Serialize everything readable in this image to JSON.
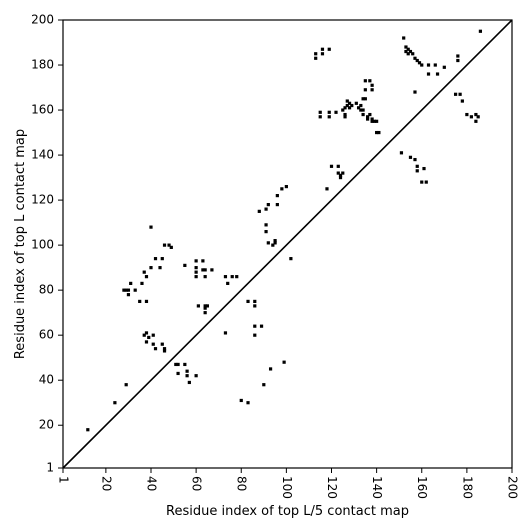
{
  "chart_data": {
    "type": "scatter",
    "xlabel": "Residue index of top L/5 contact map",
    "ylabel": "Residue index of top L contact map",
    "xlim": [
      1,
      200
    ],
    "ylim": [
      1,
      200
    ],
    "xticks": [
      1,
      20,
      40,
      60,
      80,
      100,
      120,
      140,
      160,
      180,
      200
    ],
    "yticks": [
      1,
      20,
      40,
      60,
      80,
      100,
      120,
      140,
      160,
      180,
      200
    ],
    "xtick_labels": [
      "1",
      "20",
      "40",
      "60",
      "80",
      "100",
      "120",
      "140",
      "160",
      "180",
      "200"
    ],
    "ytick_labels": [
      "1",
      "20",
      "40",
      "60",
      "80",
      "100",
      "120",
      "140",
      "160",
      "180",
      "200"
    ],
    "diagonal": true,
    "grid": false,
    "marker_color": "#000000",
    "series": [
      {
        "points": [
          [
            12,
            18
          ],
          [
            24,
            30
          ],
          [
            29,
            38
          ],
          [
            28,
            80
          ],
          [
            29,
            80
          ],
          [
            30,
            80
          ],
          [
            30,
            78
          ],
          [
            31,
            83
          ],
          [
            33,
            80
          ],
          [
            35,
            75
          ],
          [
            36,
            83
          ],
          [
            37,
            88
          ],
          [
            38,
            86
          ],
          [
            38,
            75
          ],
          [
            38,
            61
          ],
          [
            37,
            60
          ],
          [
            39,
            59
          ],
          [
            38,
            57
          ],
          [
            40,
            108
          ],
          [
            40,
            90
          ],
          [
            41,
            60
          ],
          [
            41,
            56
          ],
          [
            42,
            94
          ],
          [
            42,
            54
          ],
          [
            44,
            90
          ],
          [
            45,
            94
          ],
          [
            45,
            56
          ],
          [
            46,
            100
          ],
          [
            46,
            54
          ],
          [
            46,
            53
          ],
          [
            48,
            100
          ],
          [
            49,
            99
          ],
          [
            51,
            47
          ],
          [
            52,
            47
          ],
          [
            52,
            43
          ],
          [
            55,
            47
          ],
          [
            56,
            44
          ],
          [
            56,
            42
          ],
          [
            55,
            91
          ],
          [
            57,
            39
          ],
          [
            60,
            93
          ],
          [
            60,
            90
          ],
          [
            60,
            88
          ],
          [
            60,
            86
          ],
          [
            60,
            42
          ],
          [
            61,
            73
          ],
          [
            63,
            93
          ],
          [
            63,
            89
          ],
          [
            64,
            89
          ],
          [
            64,
            86
          ],
          [
            64,
            73
          ],
          [
            64,
            72
          ],
          [
            64,
            70
          ],
          [
            65,
            73
          ],
          [
            67,
            89
          ],
          [
            73,
            86
          ],
          [
            74,
            83
          ],
          [
            73,
            61
          ],
          [
            76,
            86
          ],
          [
            78,
            86
          ],
          [
            80,
            31
          ],
          [
            83,
            30
          ],
          [
            83,
            75
          ],
          [
            86,
            75
          ],
          [
            86,
            73
          ],
          [
            86,
            64
          ],
          [
            86,
            60
          ],
          [
            88,
            115
          ],
          [
            89,
            64
          ],
          [
            90,
            38
          ],
          [
            91,
            116
          ],
          [
            91,
            109
          ],
          [
            91,
            106
          ],
          [
            92,
            101
          ],
          [
            92,
            118
          ],
          [
            93,
            45
          ],
          [
            94,
            100
          ],
          [
            95,
            102
          ],
          [
            95,
            101
          ],
          [
            96,
            118
          ],
          [
            96,
            122
          ],
          [
            98,
            125
          ],
          [
            99,
            48
          ],
          [
            100,
            126
          ],
          [
            102,
            94
          ],
          [
            113,
            185
          ],
          [
            113,
            183
          ],
          [
            116,
            187
          ],
          [
            116,
            185
          ],
          [
            115,
            159
          ],
          [
            115,
            157
          ],
          [
            118,
            125
          ],
          [
            119,
            187
          ],
          [
            119,
            159
          ],
          [
            119,
            157
          ],
          [
            120,
            135
          ],
          [
            122,
            159
          ],
          [
            123,
            135
          ],
          [
            123,
            132
          ],
          [
            124,
            131
          ],
          [
            124,
            130
          ],
          [
            125,
            132
          ],
          [
            125,
            160
          ],
          [
            126,
            158
          ],
          [
            126,
            157
          ],
          [
            126,
            161
          ],
          [
            127,
            164
          ],
          [
            127,
            162
          ],
          [
            128,
            163
          ],
          [
            128,
            161
          ],
          [
            129,
            162
          ],
          [
            131,
            163
          ],
          [
            132,
            161
          ],
          [
            133,
            162
          ],
          [
            133,
            160
          ],
          [
            134,
            160
          ],
          [
            134,
            158
          ],
          [
            134,
            165
          ],
          [
            135,
            173
          ],
          [
            135,
            169
          ],
          [
            135,
            165
          ],
          [
            136,
            157
          ],
          [
            136,
            156
          ],
          [
            137,
            158
          ],
          [
            137,
            173
          ],
          [
            138,
            156
          ],
          [
            138,
            155
          ],
          [
            138,
            171
          ],
          [
            138,
            169
          ],
          [
            139,
            155
          ],
          [
            140,
            155
          ],
          [
            140,
            150
          ],
          [
            141,
            150
          ],
          [
            151,
            141
          ],
          [
            152,
            192
          ],
          [
            153,
            188
          ],
          [
            153,
            186
          ],
          [
            154,
            187
          ],
          [
            154,
            185
          ],
          [
            155,
            186
          ],
          [
            155,
            139
          ],
          [
            156,
            185
          ],
          [
            157,
            183
          ],
          [
            157,
            168
          ],
          [
            157,
            138
          ],
          [
            158,
            182
          ],
          [
            158,
            135
          ],
          [
            158,
            133
          ],
          [
            159,
            181
          ],
          [
            160,
            180
          ],
          [
            160,
            128
          ],
          [
            161,
            134
          ],
          [
            162,
            128
          ],
          [
            163,
            180
          ],
          [
            163,
            176
          ],
          [
            166,
            180
          ],
          [
            167,
            176
          ],
          [
            170,
            179
          ],
          [
            175,
            167
          ],
          [
            176,
            184
          ],
          [
            176,
            182
          ],
          [
            177,
            167
          ],
          [
            178,
            164
          ],
          [
            180,
            158
          ],
          [
            182,
            157
          ],
          [
            184,
            158
          ],
          [
            184,
            155
          ],
          [
            185,
            157
          ],
          [
            186,
            195
          ]
        ]
      }
    ]
  }
}
